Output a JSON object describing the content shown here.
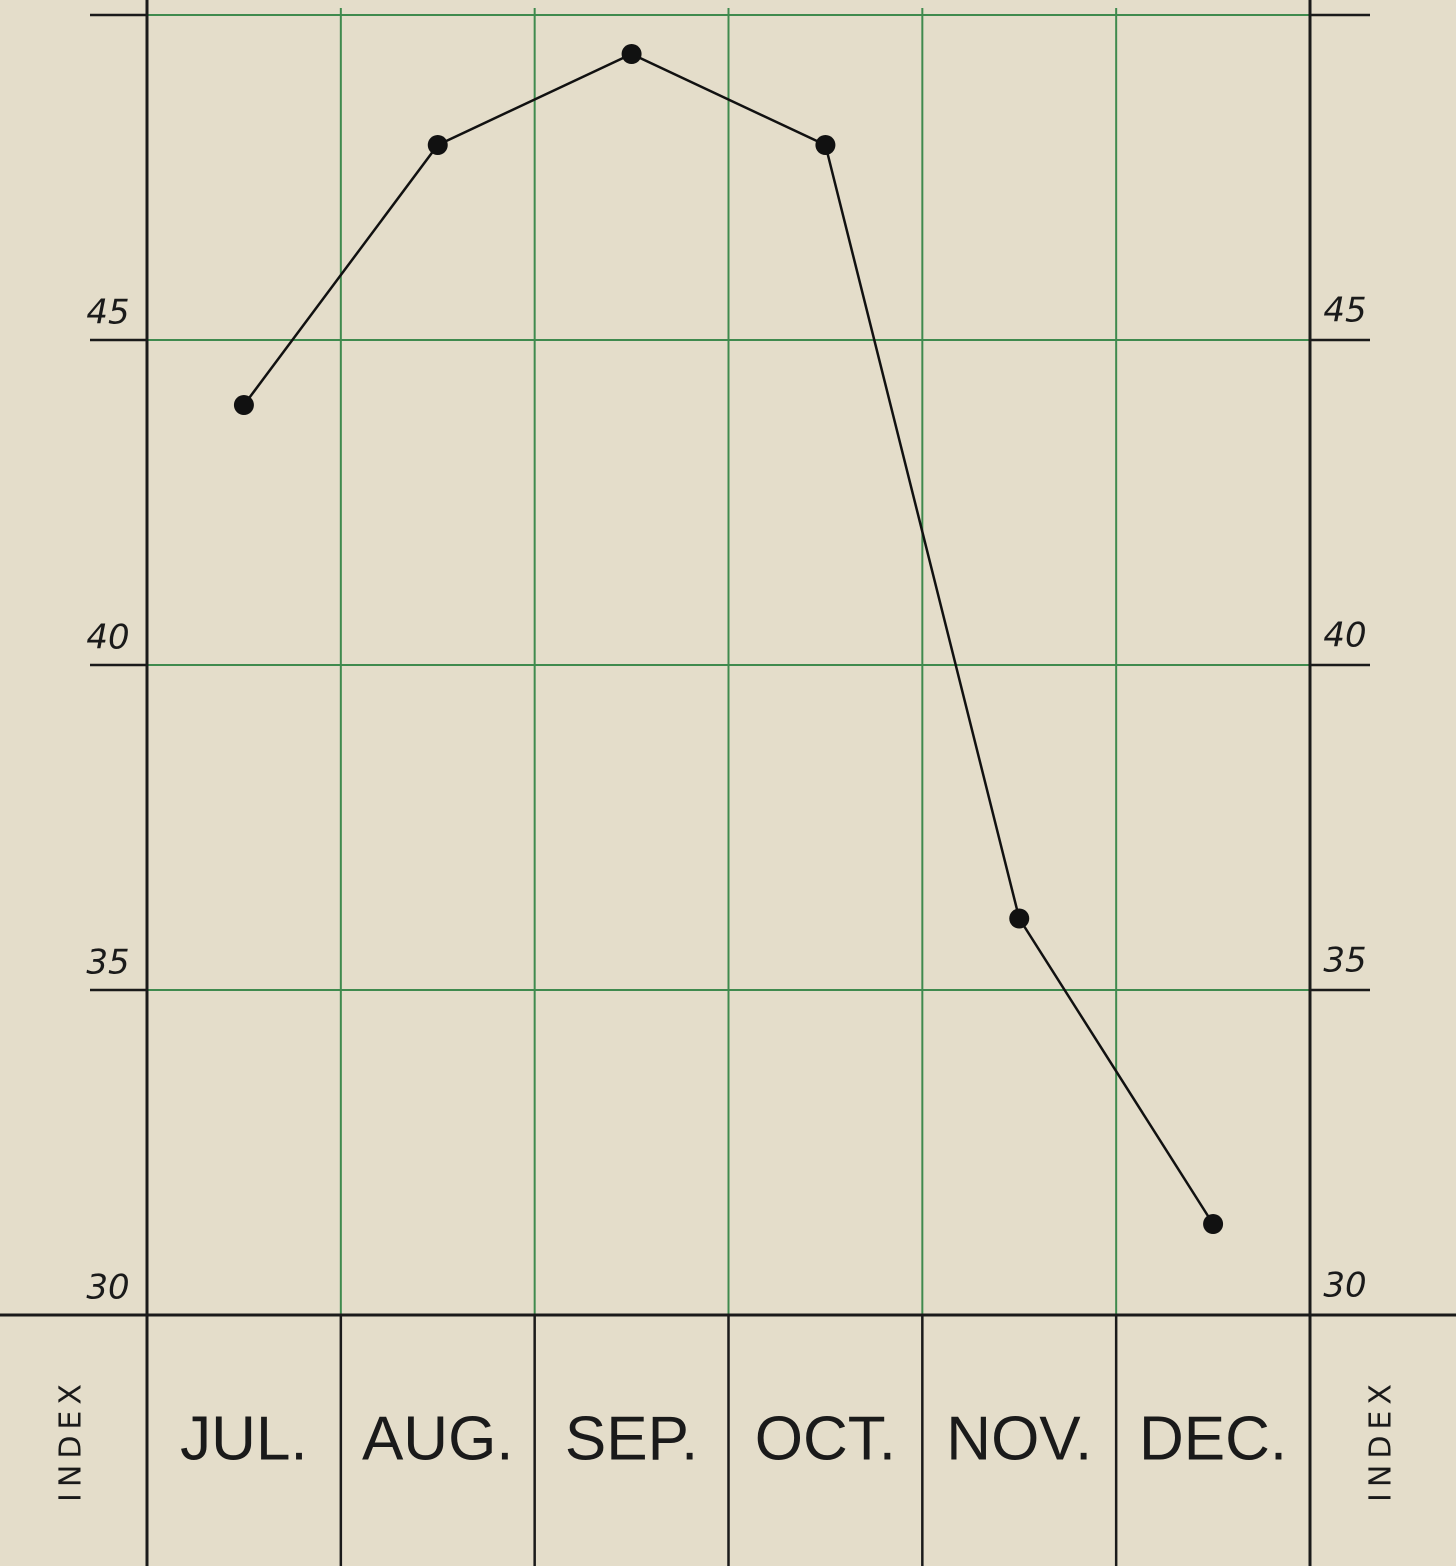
{
  "chart_data": {
    "type": "line",
    "y_label": "INDEX",
    "y2_label": "INDEX",
    "categories": [
      "JUL.",
      "AUG.",
      "SEP.",
      "OCT.",
      "NOV.",
      "DEC."
    ],
    "series": [
      {
        "name": "Index",
        "color": "#111111",
        "values": [
          44.0,
          48.0,
          49.4,
          48.0,
          36.1,
          31.4
        ]
      }
    ],
    "ylim": [
      30,
      50
    ],
    "yticks": [
      30,
      35,
      40,
      45,
      50
    ],
    "y2lim": [
      30,
      50
    ],
    "y2ticks": [
      30,
      35,
      40,
      45,
      50
    ],
    "grid": true,
    "grid_color": "#3f8a4e"
  }
}
